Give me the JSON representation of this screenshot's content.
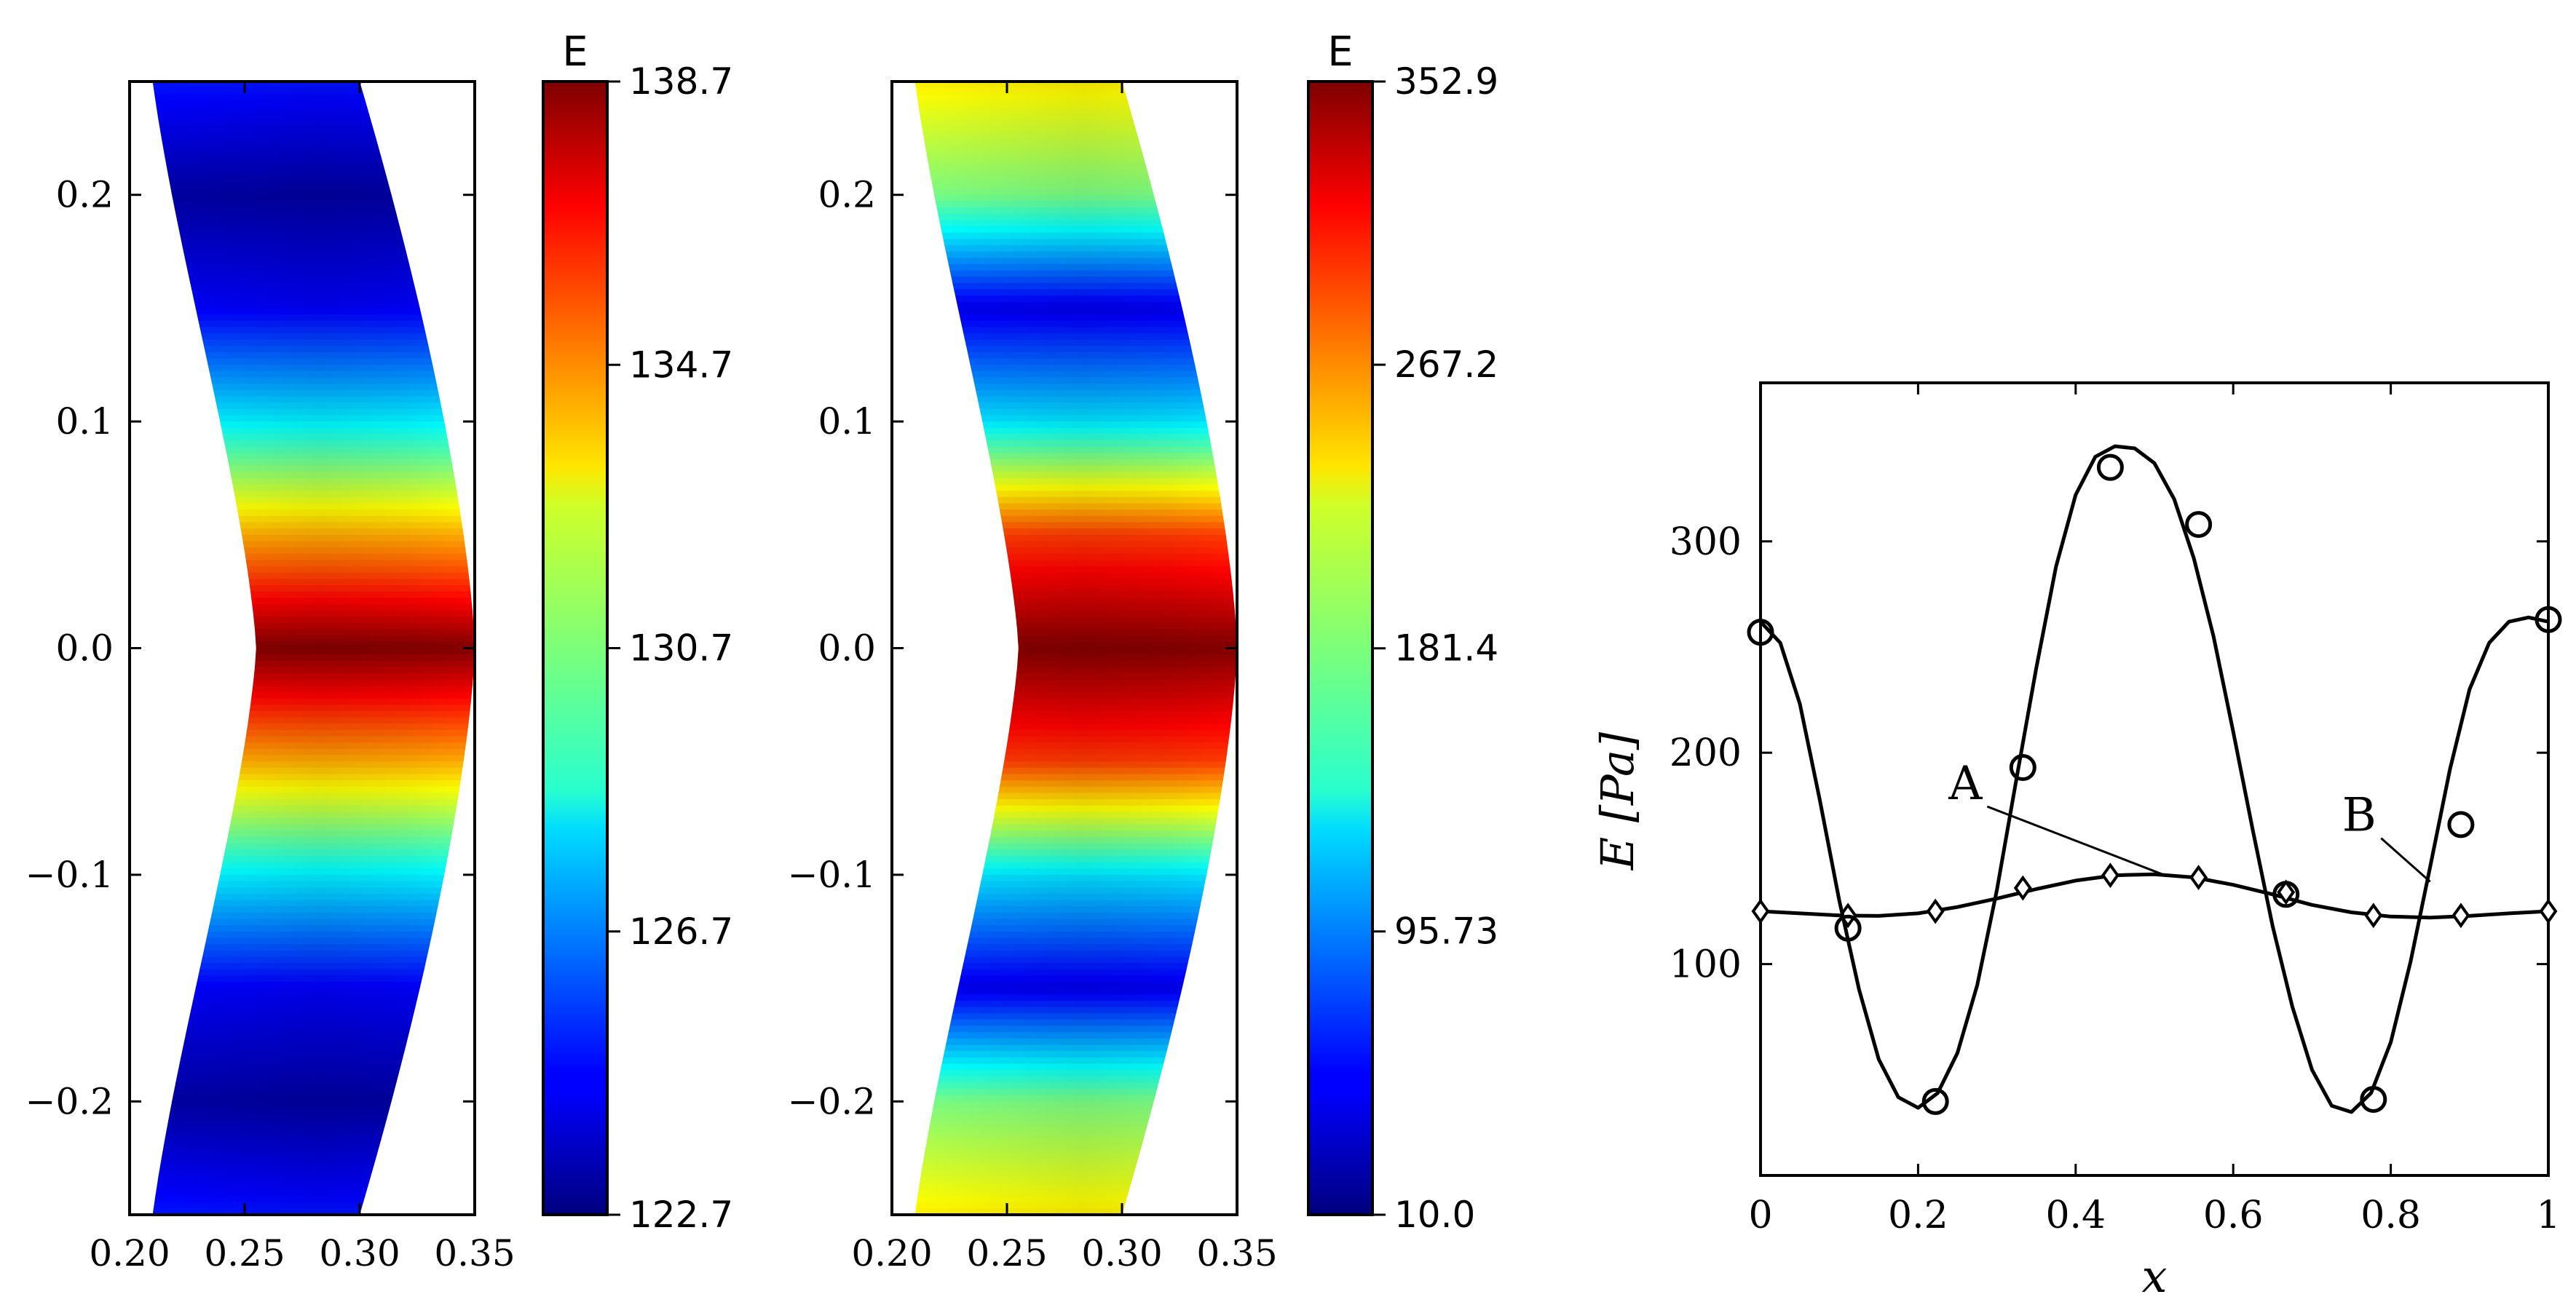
{
  "chart_data": [
    {
      "type": "heatmap",
      "id": "field-a",
      "title": "",
      "xlabel": "",
      "ylabel": "",
      "xlim": [
        0.2,
        0.35
      ],
      "ylim": [
        -0.25,
        0.25
      ],
      "x_ticks": [
        0.2,
        0.25,
        0.3,
        0.35
      ],
      "x_tick_labels": [
        "0.20",
        "0.25",
        "0.30",
        "0.35"
      ],
      "y_ticks": [
        0.2,
        0.1,
        0.0,
        -0.1,
        -0.2
      ],
      "y_tick_labels": [
        "0.2",
        "0.1",
        "0.0",
        "−0.1",
        "−0.2"
      ],
      "colorbar": {
        "label": "E",
        "min": 122.7,
        "max": 138.7,
        "tick_values": [
          138.7,
          134.7,
          130.7,
          126.7,
          122.7
        ],
        "tick_labels": [
          "138.7",
          "134.7",
          "130.7",
          "126.7",
          "122.7"
        ]
      },
      "field_profile": {
        "y": [
          0.25,
          0.2,
          0.15,
          0.1,
          0.05,
          0.0,
          -0.05,
          -0.1,
          -0.15,
          -0.2,
          -0.25
        ],
        "value": [
          125.0,
          123.2,
          124.6,
          128.5,
          134.0,
          138.7,
          134.0,
          128.5,
          124.6,
          123.2,
          125.0
        ]
      }
    },
    {
      "type": "heatmap",
      "id": "field-b",
      "title": "",
      "xlabel": "",
      "ylabel": "",
      "xlim": [
        0.2,
        0.35
      ],
      "ylim": [
        -0.25,
        0.25
      ],
      "x_ticks": [
        0.2,
        0.25,
        0.3,
        0.35
      ],
      "x_tick_labels": [
        "0.20",
        "0.25",
        "0.30",
        "0.35"
      ],
      "y_ticks": [
        0.2,
        0.1,
        0.0,
        -0.1,
        -0.2
      ],
      "y_tick_labels": [
        "0.2",
        "0.1",
        "0.0",
        "−0.1",
        "−0.2"
      ],
      "colorbar": {
        "label": "E",
        "min": 10.0,
        "max": 352.9,
        "tick_values": [
          352.9,
          267.2,
          181.4,
          95.73,
          10.0
        ],
        "tick_labels": [
          "352.9",
          "267.2",
          "181.4",
          "95.73",
          "10.0"
        ]
      },
      "field_profile": {
        "y": [
          0.25,
          0.2,
          0.15,
          0.1,
          0.05,
          0.0,
          -0.05,
          -0.1,
          -0.15,
          -0.2,
          -0.25
        ],
        "value": [
          230.0,
          180.0,
          45.0,
          130.0,
          290.0,
          352.9,
          290.0,
          130.0,
          45.0,
          180.0,
          230.0
        ]
      }
    },
    {
      "type": "line",
      "id": "profile",
      "title": "",
      "xlabel": "x",
      "ylabel": "E [Pa]",
      "xlim": [
        0,
        1
      ],
      "ylim": [
        0,
        375
      ],
      "x_ticks": [
        0,
        0.2,
        0.4,
        0.6,
        0.8,
        1
      ],
      "x_tick_labels": [
        "0",
        "0.2",
        "0.4",
        "0.6",
        "0.8",
        "1"
      ],
      "y_ticks": [
        100,
        200,
        300
      ],
      "y_tick_labels": [
        "100",
        "200",
        "300"
      ],
      "series": [
        {
          "name": "A",
          "marker": "diamond",
          "curve_x": [
            0,
            0.05,
            0.1,
            0.15,
            0.2,
            0.25,
            0.3,
            0.35,
            0.4,
            0.45,
            0.5,
            0.55,
            0.6,
            0.65,
            0.7,
            0.75,
            0.8,
            0.85,
            0.9,
            0.95,
            1.0
          ],
          "curve_y": [
            125,
            124,
            123,
            122.8,
            124,
            127,
            131,
            135.5,
            139.5,
            142,
            142.5,
            141,
            137.5,
            133,
            128,
            124.5,
            122.5,
            122,
            122.8,
            124,
            125
          ],
          "markers_x": [
            0,
            0.111,
            0.222,
            0.333,
            0.444,
            0.556,
            0.667,
            0.778,
            0.889,
            1.0
          ],
          "markers_y": [
            125,
            123,
            125,
            136,
            142,
            141,
            134,
            123,
            123,
            125
          ]
        },
        {
          "name": "B",
          "marker": "circle",
          "curve_x": [
            0,
            0.025,
            0.05,
            0.075,
            0.1,
            0.125,
            0.15,
            0.175,
            0.2,
            0.225,
            0.25,
            0.275,
            0.3,
            0.325,
            0.35,
            0.375,
            0.4,
            0.425,
            0.45,
            0.475,
            0.5,
            0.525,
            0.55,
            0.575,
            0.6,
            0.625,
            0.65,
            0.675,
            0.7,
            0.725,
            0.75,
            0.775,
            0.8,
            0.825,
            0.85,
            0.875,
            0.9,
            0.925,
            0.95,
            0.975,
            1.0
          ],
          "curve_y": [
            262,
            252,
            223,
            178,
            130,
            88,
            55,
            37,
            32,
            39,
            58,
            90,
            135,
            188,
            240,
            288,
            322,
            340,
            345,
            344,
            337,
            320,
            292,
            255,
            210,
            163,
            118,
            80,
            50,
            33,
            30,
            39,
            63,
            101,
            146,
            192,
            230,
            252,
            262,
            264,
            262
          ],
          "markers_x": [
            0,
            0.111,
            0.222,
            0.333,
            0.444,
            0.556,
            0.667,
            0.778,
            0.889,
            1.0
          ],
          "markers_y": [
            257,
            117,
            35,
            193,
            335,
            308,
            133,
            36,
            166,
            263
          ]
        }
      ],
      "annotations": [
        {
          "text": "A",
          "data_x": 0.26,
          "data_y": 178,
          "target_x": 0.51,
          "target_y": 142.5
        },
        {
          "text": "B",
          "data_x": 0.76,
          "data_y": 163,
          "target_x": 0.85,
          "target_y": 139
        }
      ]
    }
  ]
}
